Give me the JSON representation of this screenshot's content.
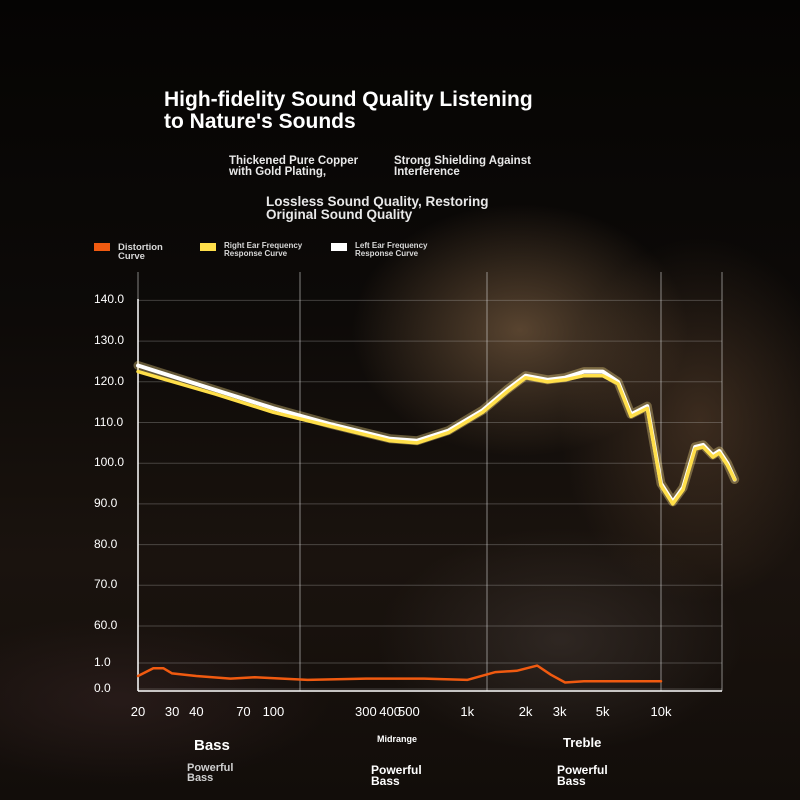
{
  "header": {
    "title": "High-fidelity Sound Quality Listening\n to Nature's Sounds",
    "feature_1": "Thickened Pure Copper\n with Gold Plating,",
    "feature_2": "Strong Shielding Against\n Interference",
    "feature_3": "Lossless Sound Quality, Restoring\n Original Sound Quality"
  },
  "legend": [
    {
      "label": "Distortion\n Curve",
      "color": "#f05a10"
    },
    {
      "label": "Right Ear Frequency\n Response Curve",
      "color": "#ffdf4a"
    },
    {
      "label": "Left Ear Frequency\n Response Curve",
      "color": "#ffffff"
    }
  ],
  "bands": {
    "bass": "Bass",
    "bass_note": "Powerful\nBass",
    "midrange": "Midrange",
    "midrange_note": "Powerful\nBass",
    "treble": "Treble",
    "treble_note": "Powerful\nBass"
  },
  "chart_data": {
    "type": "line",
    "x_scale": "log",
    "x_ticks": [
      "20",
      "30",
      "40",
      "70",
      "100",
      "300",
      "400",
      "500",
      "1k",
      "2k",
      "3k",
      "5k",
      "10k"
    ],
    "x_tick_values": [
      20,
      30,
      40,
      70,
      100,
      300,
      400,
      500,
      1000,
      2000,
      3000,
      5000,
      10000
    ],
    "y_ticks": [
      "0.0",
      "1.0",
      "60.0",
      "70.0",
      "80.0",
      "90.0",
      "100.0",
      "110.0",
      "120.0",
      "130.0",
      "140.0"
    ],
    "y_tick_values": [
      0,
      1,
      60,
      70,
      80,
      90,
      100,
      110,
      120,
      130,
      140
    ],
    "xlim": [
      20,
      25000
    ],
    "grid": true,
    "legend_position": "top-left",
    "series": [
      {
        "name": "Left Ear Frequency Response Curve",
        "color": "#ffffff",
        "x": [
          20,
          50,
          100,
          200,
          400,
          550,
          800,
          1200,
          1600,
          2000,
          2600,
          3200,
          4000,
          5000,
          6000,
          7000,
          8500,
          10000,
          11500,
          13000,
          15000,
          16500,
          18500,
          20000,
          22000,
          24000
        ],
        "y": [
          124,
          118,
          113.5,
          109.5,
          106,
          105.5,
          108,
          113,
          118,
          121.5,
          120.5,
          121,
          122.5,
          122.5,
          120,
          112,
          114,
          95,
          90.5,
          94,
          104,
          104.5,
          102,
          103,
          100,
          96
        ]
      },
      {
        "name": "Right Ear Frequency Response Curve",
        "color": "#ffdf4a",
        "x": [
          20,
          50,
          100,
          200,
          400,
          550,
          800,
          1200,
          1600,
          2000,
          2600,
          3200,
          4000,
          5000,
          6000,
          7000,
          8500,
          10000,
          11500,
          13000,
          15000,
          16500,
          18500,
          20000,
          22000,
          24000
        ],
        "y": [
          122.5,
          117,
          112.5,
          109,
          105.5,
          105,
          107.5,
          112.5,
          117.5,
          121,
          120,
          120.5,
          121.5,
          121.5,
          119.5,
          111.5,
          113.5,
          94.5,
          90,
          93.5,
          103.5,
          104,
          101.5,
          102.5,
          99.5,
          96
        ]
      },
      {
        "name": "Distortion Curve",
        "color": "#f05a10",
        "x": [
          20,
          24,
          27,
          30,
          40,
          60,
          80,
          150,
          300,
          600,
          1000,
          1400,
          1800,
          2300,
          2700,
          3200,
          4000,
          5000,
          10000
        ],
        "y": [
          0.5,
          0.8,
          0.8,
          0.6,
          0.5,
          0.4,
          0.45,
          0.35,
          0.4,
          0.4,
          0.35,
          0.65,
          0.7,
          0.9,
          0.55,
          0.25,
          0.3,
          0.3,
          0.3
        ]
      }
    ]
  }
}
